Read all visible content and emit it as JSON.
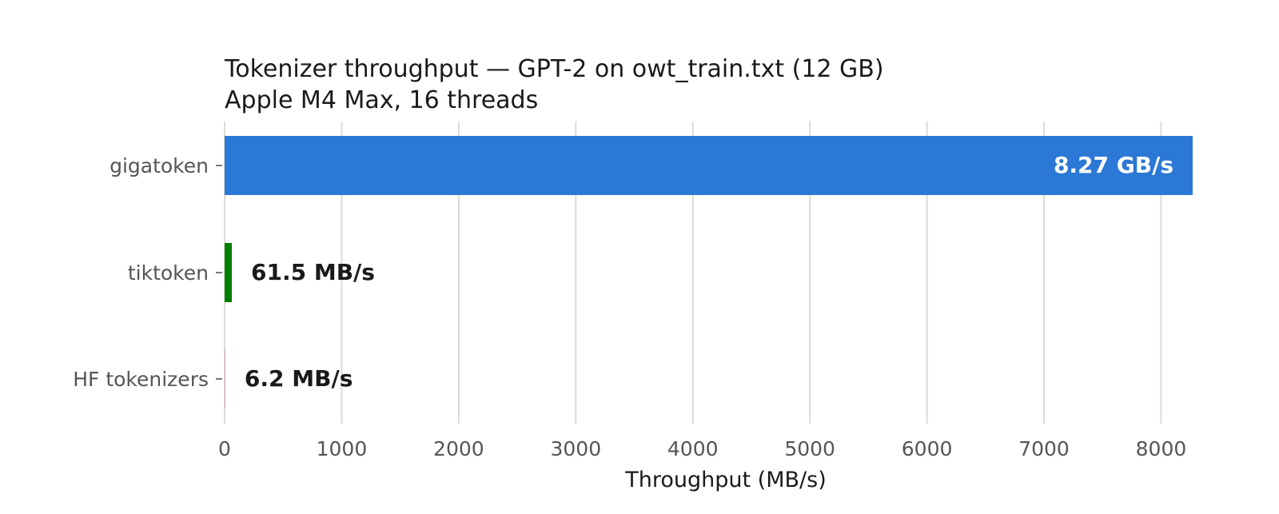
{
  "chart_data": {
    "type": "bar",
    "orientation": "horizontal",
    "title": "Tokenizer throughput — GPT-2 on owt_train.txt (12 GB)",
    "subtitle": "Apple M4 Max, 16 threads",
    "xlabel": "Throughput (MB/s)",
    "ylabel": "",
    "xlim": [
      0,
      8270
    ],
    "xticks": [
      0,
      1000,
      2000,
      3000,
      4000,
      5000,
      6000,
      7000,
      8000
    ],
    "grid": "vertical",
    "legend": "none",
    "categories": [
      "gigatoken",
      "tiktoken",
      "HF tokenizers"
    ],
    "values": [
      8270,
      61.5,
      6.2
    ],
    "value_labels": [
      "8.27 GB/s",
      "61.5 MB/s",
      "6.2 MB/s"
    ],
    "colors": [
      "#2b78d6",
      "#008000",
      "#d9a8b8"
    ]
  }
}
